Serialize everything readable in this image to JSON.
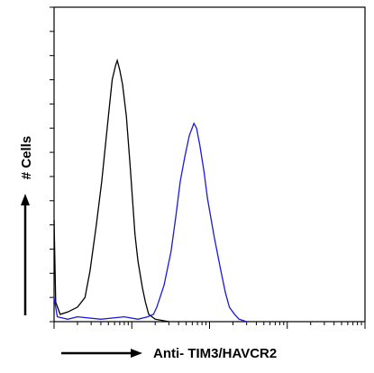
{
  "chart_data": {
    "type": "line",
    "xlabel": "Anti- TIM3/HAVCR2",
    "ylabel": "# Cells",
    "xscale": "log",
    "xlim": [
      1,
      10000
    ],
    "ylim": [
      0,
      130
    ],
    "xticks": [
      1,
      2,
      3,
      4,
      5,
      6,
      7,
      8,
      9,
      10,
      20,
      30,
      40,
      50,
      60,
      70,
      80,
      90,
      100,
      200,
      300,
      400,
      500,
      600,
      700,
      800,
      900,
      1000,
      2000,
      3000,
      4000,
      5000,
      6000,
      7000,
      8000,
      9000,
      10000
    ],
    "yticks": [
      0,
      10,
      20,
      30,
      40,
      50,
      60,
      70,
      80,
      90,
      100,
      110,
      120,
      130
    ],
    "series": [
      {
        "color": "#000000",
        "x": [
          1,
          1.05,
          1.2,
          1.5,
          2,
          2.5,
          2.9,
          3.5,
          4.1,
          5,
          5.6,
          6.2,
          6.5,
          7,
          7.6,
          8.5,
          9.5,
          11,
          12,
          13.7,
          15,
          16.5,
          20,
          30
        ],
        "values": [
          42,
          8,
          3,
          4,
          6,
          10,
          21,
          40,
          58,
          85,
          100,
          106,
          108,
          104,
          98,
          85,
          65,
          36,
          25,
          14,
          8,
          3,
          1,
          0
        ]
      },
      {
        "color": "#1a1adc",
        "x": [
          1,
          1.1,
          1.5,
          2,
          4,
          8,
          12,
          16,
          19,
          21,
          26,
          32,
          37,
          42,
          48,
          55,
          63,
          68,
          75,
          85,
          94,
          115,
          140,
          160,
          180,
          210,
          240,
          300
        ],
        "values": [
          10,
          2,
          1,
          2,
          1,
          2,
          1,
          2,
          3,
          6,
          15,
          29,
          44,
          58,
          68,
          77,
          82,
          80,
          73,
          62,
          51,
          35,
          21,
          12,
          6,
          3,
          1,
          0
        ]
      }
    ]
  }
}
